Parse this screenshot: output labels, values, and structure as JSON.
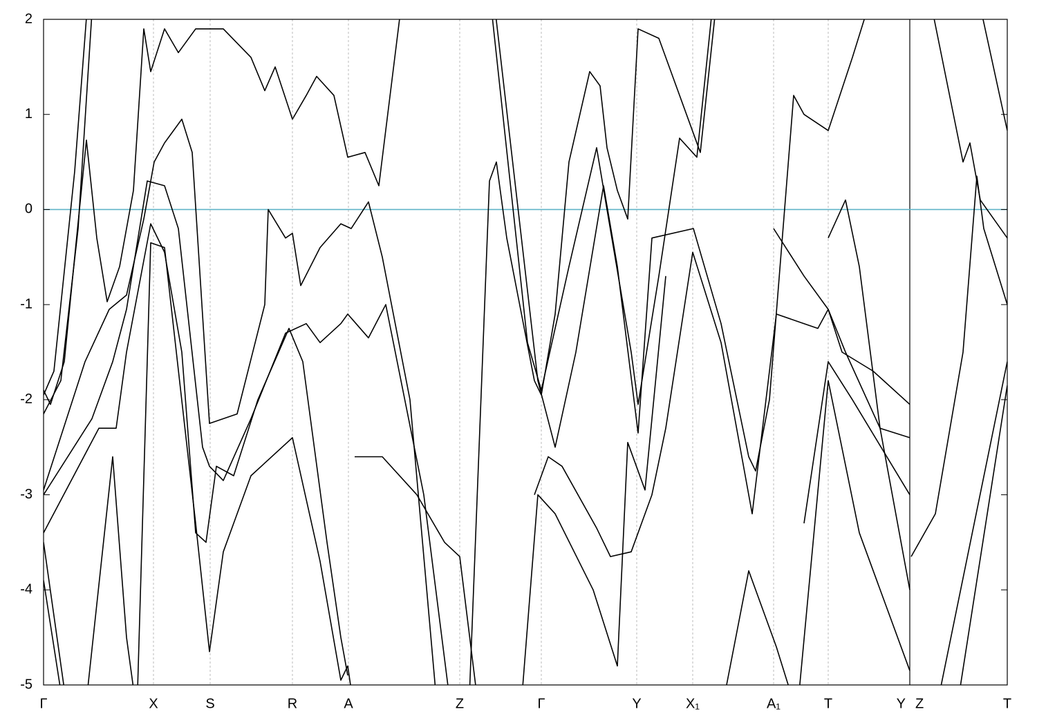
{
  "chart_data": {
    "type": "line",
    "xlim": [
      0,
      13.94
    ],
    "ylim": [
      -5,
      2
    ],
    "yticks": [
      2,
      1,
      0,
      -1,
      -2,
      -3,
      -4,
      -5
    ],
    "xticks": [
      {
        "value": 0,
        "label": "Γ"
      },
      {
        "value": 1.59,
        "label": "X"
      },
      {
        "value": 2.41,
        "label": "S"
      },
      {
        "value": 3.6,
        "label": "R"
      },
      {
        "value": 4.41,
        "label": "A"
      },
      {
        "value": 6.02,
        "label": "Z"
      },
      {
        "value": 7.2,
        "label": "Γ"
      },
      {
        "value": 8.58,
        "label": "Y"
      },
      {
        "value": 9.39,
        "label": "X₁"
      },
      {
        "value": 10.56,
        "label": "A₁"
      },
      {
        "value": 11.35,
        "label": "T"
      },
      {
        "value": 12.53,
        "label": "Y"
      },
      {
        "value": 12.55,
        "label": "Z"
      },
      {
        "value": 13.94,
        "label": "T"
      }
    ],
    "grid": true,
    "hlines": [
      {
        "value": 0,
        "color": "#5fb4c8"
      }
    ],
    "series": [
      {
        "color": "#000000",
        "x": [
          0,
          0.15,
          0.45,
          0.65
        ],
        "values": [
          -1.95,
          -1.7,
          0.4,
          2.3
        ]
      },
      {
        "color": "#000000",
        "x": [
          0,
          0.25,
          0.5,
          0.72
        ],
        "values": [
          -2.15,
          -1.8,
          -0.2,
          2.3
        ]
      },
      {
        "color": "#000000",
        "x": [
          0,
          0.1,
          0.3,
          0.45,
          0.62,
          0.77,
          0.92,
          1.1,
          1.3,
          1.45,
          1.55,
          1.75,
          1.95,
          2.2,
          2.6,
          3.0,
          3.2,
          3.35,
          3.6,
          3.8,
          3.95,
          4.2,
          4.4,
          4.65,
          4.85,
          5.2
        ],
        "values": [
          -1.9,
          -2.05,
          -1.6,
          -0.5,
          0.73,
          -0.3,
          -0.97,
          -0.6,
          0.2,
          1.9,
          1.45,
          1.9,
          1.65,
          1.9,
          1.9,
          1.6,
          1.25,
          1.5,
          0.95,
          1.2,
          1.4,
          1.2,
          0.55,
          0.6,
          0.25,
          2.3
        ]
      },
      {
        "color": "#000000",
        "x": [
          0,
          0.6,
          0.95,
          1.2,
          1.45,
          1.6,
          1.75,
          2.0,
          2.15,
          2.4,
          2.8,
          3.2,
          3.25,
          3.5,
          3.6,
          3.72,
          4.0,
          4.3,
          4.45,
          4.7,
          4.9,
          5.3,
          5.7
        ],
        "values": [
          -2.95,
          -1.6,
          -1.05,
          -0.9,
          -0.1,
          0.5,
          0.7,
          0.95,
          0.6,
          -2.25,
          -2.15,
          -1.0,
          0.0,
          -0.3,
          -0.25,
          -0.8,
          -0.4,
          -0.15,
          -0.2,
          0.08,
          -0.5,
          -2.0,
          -5.3
        ]
      },
      {
        "color": "#000000",
        "x": [
          0,
          0.7,
          1.0,
          1.2,
          1.5,
          1.75,
          1.95,
          2.3,
          2.4,
          2.6,
          3.0,
          3.5,
          3.8,
          4.0,
          4.3,
          4.4,
          4.7,
          4.95,
          5.5,
          5.9
        ],
        "values": [
          -3.0,
          -2.2,
          -1.6,
          -1.05,
          0.3,
          0.25,
          -0.2,
          -2.5,
          -2.7,
          -2.85,
          -2.2,
          -1.3,
          -1.2,
          -1.4,
          -1.2,
          -1.1,
          -1.35,
          -1.0,
          -3.0,
          -5.3
        ]
      },
      {
        "color": "#000000",
        "x": [
          0,
          0.8,
          1.05,
          1.2,
          1.55,
          1.75,
          2.0,
          2.2,
          2.35,
          2.5,
          2.75,
          3.1,
          3.55,
          3.75,
          4.1,
          4.3,
          4.4
        ],
        "values": [
          -3.4,
          -2.3,
          -2.3,
          -1.5,
          -0.15,
          -0.45,
          -1.5,
          -3.4,
          -3.5,
          -2.7,
          -2.8,
          -2.0,
          -1.25,
          -1.6,
          -3.5,
          -4.5,
          -4.9
        ]
      },
      {
        "color": "#000000",
        "x": [
          0,
          0.35
        ],
        "values": [
          -3.5,
          -5.3
        ]
      },
      {
        "color": "#000000",
        "x": [
          0,
          0.3
        ],
        "values": [
          -3.9,
          -5.3
        ]
      },
      {
        "color": "#000000",
        "x": [
          0.6,
          1.0,
          1.2,
          1.35
        ],
        "values": [
          -5.3,
          -2.6,
          -4.5,
          -5.3
        ]
      },
      {
        "color": "#000000",
        "x": [
          1.35,
          1.55,
          1.75,
          2.2,
          2.4,
          2.6,
          3.0,
          3.6,
          4.0,
          4.3,
          4.4,
          4.5
        ],
        "values": [
          -5.3,
          -0.35,
          -0.4,
          -3.3,
          -4.65,
          -3.6,
          -2.8,
          -2.4,
          -3.7,
          -4.95,
          -4.8,
          -5.3
        ]
      },
      {
        "color": "#000000",
        "x": [
          4.5,
          4.9,
          5.4,
          5.8,
          6.02,
          6.3
        ],
        "values": [
          -2.6,
          -2.6,
          -3.0,
          -3.5,
          -3.65,
          -5.3
        ]
      },
      {
        "color": "#000000",
        "x": [
          6.15,
          6.45,
          6.55,
          6.7,
          7.1,
          7.2,
          7.4,
          7.6,
          7.9,
          8.05,
          8.15,
          8.3,
          8.45,
          8.6,
          8.9,
          9.3,
          9.5,
          9.75
        ],
        "values": [
          -5.3,
          0.3,
          0.5,
          -0.3,
          -1.8,
          -1.95,
          -1.1,
          0.5,
          1.45,
          1.3,
          0.65,
          0.2,
          -0.1,
          1.9,
          1.8,
          1.0,
          0.6,
          2.3
        ]
      },
      {
        "color": "#000000",
        "x": [
          6.45,
          7.0,
          7.2,
          7.6,
          8.0,
          8.15,
          8.5,
          8.6,
          8.9,
          9.2,
          9.45,
          9.7
        ],
        "values": [
          2.3,
          -1.4,
          -1.9,
          -0.6,
          0.65,
          0.0,
          -1.5,
          -2.05,
          -0.7,
          0.75,
          0.55,
          2.3
        ]
      },
      {
        "color": "#000000",
        "x": [
          6.5,
          7.15,
          7.4,
          7.7,
          8.1,
          8.3,
          8.6,
          8.8,
          9.4,
          9.8,
          10.2,
          10.3,
          10.5,
          10.85,
          11.0,
          11.35,
          11.7,
          12.0
        ],
        "values": [
          2.3,
          -1.8,
          -2.5,
          -1.5,
          0.25,
          -0.6,
          -2.35,
          -0.3,
          -0.2,
          -1.2,
          -2.6,
          -2.75,
          -2.0,
          1.2,
          1.0,
          0.83,
          1.6,
          2.3
        ]
      },
      {
        "color": "#000000",
        "x": [
          7.1,
          7.3,
          7.5,
          8.0,
          8.2,
          8.5,
          8.8,
          9.0,
          9.39,
          9.8,
          10.2,
          10.25,
          10.6,
          11.0,
          11.2,
          11.35,
          11.55,
          12.0,
          12.53
        ],
        "values": [
          -3.0,
          -2.6,
          -2.7,
          -3.35,
          -3.65,
          -3.6,
          -3.0,
          -2.3,
          -0.45,
          -1.4,
          -3.0,
          -3.2,
          -1.1,
          -1.2,
          -1.25,
          -1.05,
          -1.5,
          -1.7,
          -2.05
        ]
      },
      {
        "color": "#000000",
        "x": [
          6.9,
          7.15,
          7.4,
          7.95,
          8.3,
          8.45,
          8.7,
          9.0
        ],
        "values": [
          -5.3,
          -3.0,
          -3.2,
          -4.0,
          -4.8,
          -2.45,
          -2.95,
          -0.7
        ]
      },
      {
        "color": "#000000",
        "x": [
          10.56,
          11.0,
          11.35,
          11.6,
          12.1,
          12.53
        ],
        "values": [
          -0.2,
          -0.7,
          -1.05,
          -1.5,
          -2.3,
          -2.4
        ]
      },
      {
        "color": "#000000",
        "x": [
          11.35,
          11.6,
          11.8,
          12.1,
          12.53
        ],
        "values": [
          -0.3,
          0.1,
          -0.6,
          -2.3,
          -4.0
        ]
      },
      {
        "color": "#000000",
        "x": [
          11.0,
          11.35,
          11.7,
          12.53
        ],
        "values": [
          -3.3,
          -1.6,
          -2.0,
          -3.0
        ]
      },
      {
        "color": "#000000",
        "x": [
          10.9,
          11.35,
          11.8,
          12.53
        ],
        "values": [
          -5.3,
          -1.8,
          -3.4,
          -4.85
        ]
      },
      {
        "color": "#000000",
        "x": [
          12.55,
          12.9,
          13.3,
          13.5,
          13.6,
          13.94
        ],
        "values": [
          -3.65,
          -3.2,
          -1.5,
          0.35,
          -0.2,
          -1.0
        ]
      },
      {
        "color": "#000000",
        "x": [
          12.8,
          13.3,
          13.4,
          13.55,
          13.94
        ],
        "values": [
          2.3,
          0.5,
          0.7,
          0.1,
          -0.3
        ]
      },
      {
        "color": "#000000",
        "x": [
          12.9,
          13.94
        ],
        "values": [
          -5.3,
          -1.6
        ]
      },
      {
        "color": "#000000",
        "x": [
          13.2,
          13.94
        ],
        "values": [
          -5.3,
          -1.85
        ]
      },
      {
        "color": "#000000",
        "x": [
          13.5,
          13.94
        ],
        "values": [
          2.3,
          0.83
        ]
      },
      {
        "color": "#000000",
        "x": [
          9.8,
          10.2,
          10.6,
          10.9
        ],
        "values": [
          -5.3,
          -3.8,
          -4.6,
          -5.3
        ]
      }
    ]
  }
}
